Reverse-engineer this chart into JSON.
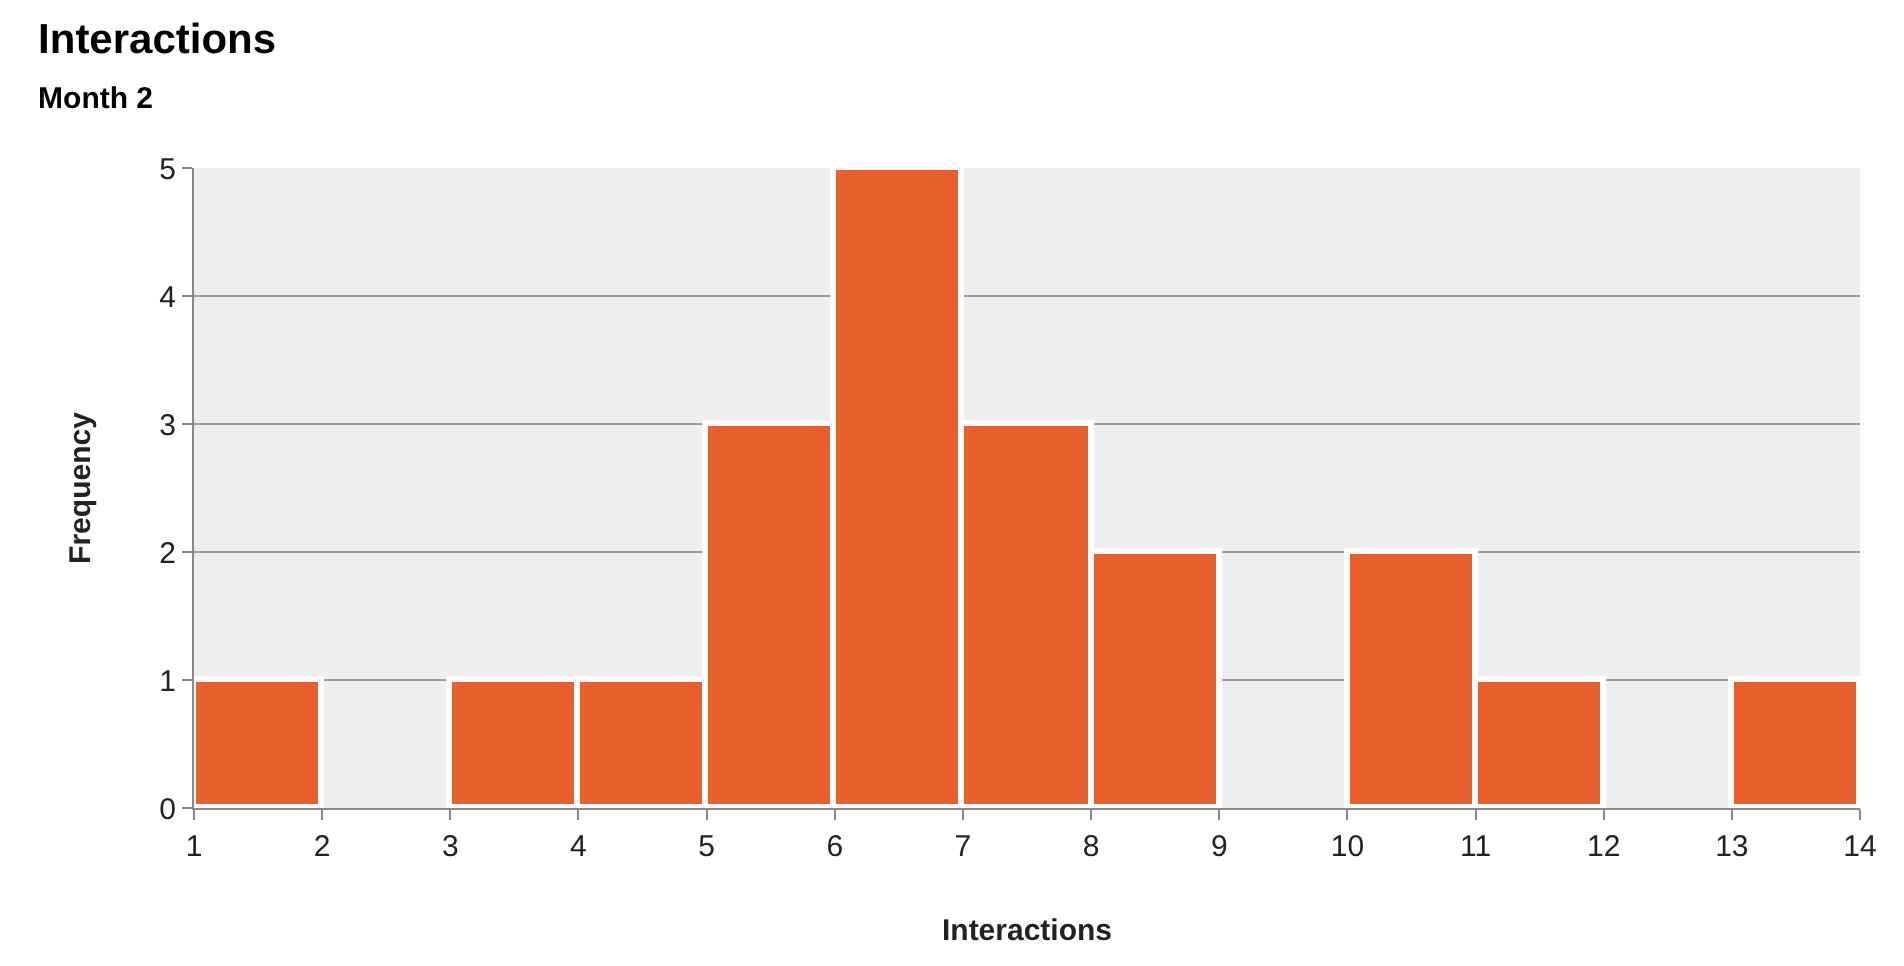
{
  "chart_data": {
    "type": "histogram",
    "title": "Interactions",
    "subtitle": "Month 2",
    "xlabel": "Interactions",
    "ylabel": "Frequency",
    "bins": [
      1,
      2,
      3,
      4,
      5,
      6,
      7,
      8,
      9,
      10,
      11,
      12,
      13,
      14
    ],
    "values": [
      1,
      0,
      1,
      1,
      3,
      5,
      3,
      2,
      0,
      2,
      1,
      0,
      1
    ],
    "color": "#e8602c",
    "xlim": [
      1,
      14
    ],
    "xticks": [
      1,
      2,
      3,
      4,
      5,
      6,
      7,
      8,
      9,
      10,
      11,
      12,
      13,
      14
    ],
    "ylim": [
      0,
      5
    ],
    "yticks": [
      0,
      1,
      2,
      3,
      4,
      5
    ],
    "grid": "y"
  }
}
